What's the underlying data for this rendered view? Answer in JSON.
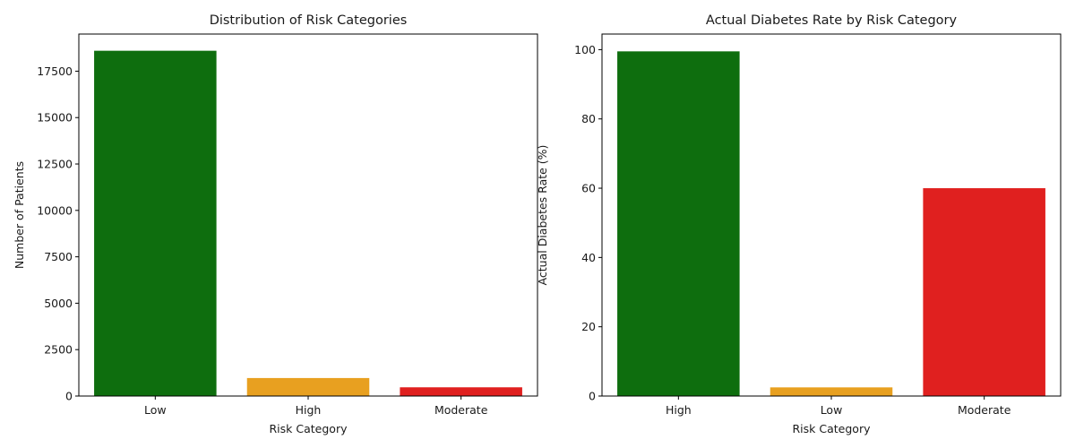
{
  "chart_data": [
    {
      "type": "bar",
      "title": "Distribution of Risk Categories",
      "xlabel": "Risk Category",
      "ylabel": "Number of Patients",
      "categories": [
        "Low",
        "High",
        "Moderate"
      ],
      "values": [
        18600,
        970,
        470
      ],
      "colors": [
        "#0e6e0e",
        "#e8a020",
        "#e0201f"
      ],
      "ylim": [
        0,
        19500
      ],
      "yticks": [
        0,
        2500,
        5000,
        7500,
        10000,
        12500,
        15000,
        17500
      ],
      "grid": false
    },
    {
      "type": "bar",
      "title": "Actual Diabetes Rate by Risk Category",
      "xlabel": "Risk Category",
      "ylabel": "Actual Diabetes Rate (%)",
      "categories": [
        "High",
        "Low",
        "Moderate"
      ],
      "values": [
        99.5,
        2.5,
        60
      ],
      "colors": [
        "#0e6e0e",
        "#e8a020",
        "#e0201f"
      ],
      "ylim": [
        0,
        104.5
      ],
      "yticks": [
        0,
        20,
        40,
        60,
        80,
        100
      ],
      "grid": false
    }
  ]
}
